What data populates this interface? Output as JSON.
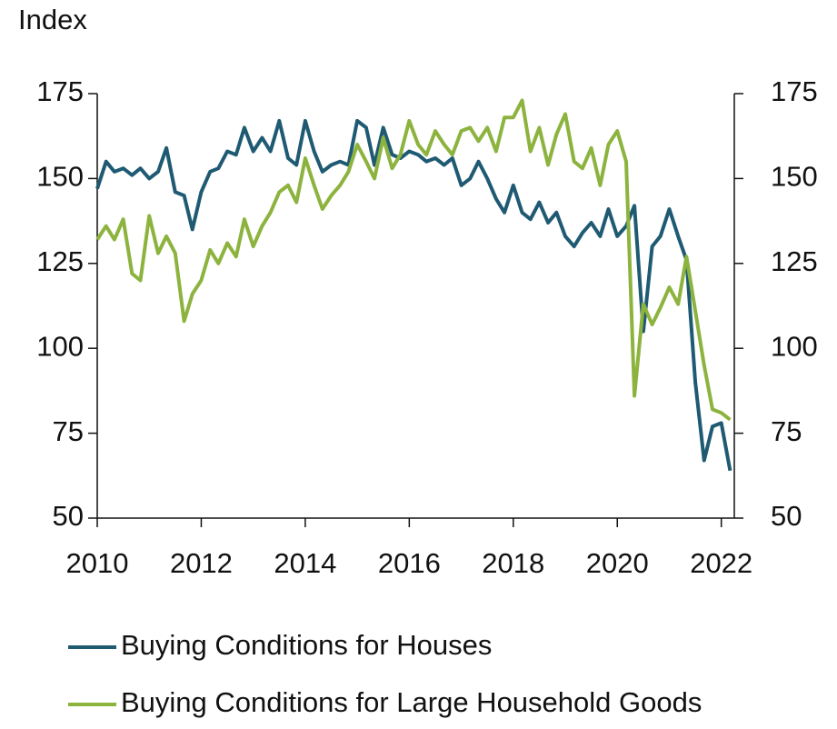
{
  "chart_data": {
    "type": "line",
    "y_label": "Index",
    "x": [
      2010,
      2010.17,
      2010.33,
      2010.5,
      2010.67,
      2010.83,
      2011,
      2011.17,
      2011.33,
      2011.5,
      2011.67,
      2011.83,
      2012,
      2012.17,
      2012.33,
      2012.5,
      2012.67,
      2012.83,
      2013,
      2013.17,
      2013.33,
      2013.5,
      2013.67,
      2013.83,
      2014,
      2014.17,
      2014.33,
      2014.5,
      2014.67,
      2014.83,
      2015,
      2015.17,
      2015.33,
      2015.5,
      2015.67,
      2015.83,
      2016,
      2016.17,
      2016.33,
      2016.5,
      2016.67,
      2016.83,
      2017,
      2017.17,
      2017.33,
      2017.5,
      2017.67,
      2017.83,
      2018,
      2018.17,
      2018.33,
      2018.5,
      2018.67,
      2018.83,
      2019,
      2019.17,
      2019.33,
      2019.5,
      2019.67,
      2019.83,
      2020,
      2020.17,
      2020.33,
      2020.5,
      2020.67,
      2020.83,
      2021,
      2021.17,
      2021.33,
      2021.5,
      2021.67,
      2021.83,
      2022,
      2022.17
    ],
    "series": [
      {
        "name": "Buying Conditions for Houses",
        "color": "#1f5a73",
        "values": [
          147,
          155,
          152,
          153,
          151,
          153,
          150,
          152,
          159,
          146,
          145,
          135,
          146,
          152,
          153,
          158,
          157,
          165,
          158,
          162,
          158,
          167,
          156,
          154,
          167,
          158,
          152,
          154,
          155,
          154,
          167,
          165,
          154,
          165,
          157,
          156,
          158,
          157,
          155,
          156,
          154,
          156,
          148,
          150,
          155,
          150,
          144,
          140,
          148,
          140,
          138,
          143,
          137,
          140,
          133,
          130,
          134,
          137,
          133,
          141,
          133,
          136,
          142,
          105,
          130,
          133,
          141,
          133,
          126,
          90,
          67,
          77,
          78,
          64
        ]
      },
      {
        "name": "Buying Conditions for Large Household Goods",
        "color": "#8db33f",
        "values": [
          132,
          136,
          132,
          138,
          122,
          120,
          139,
          128,
          133,
          128,
          108,
          116,
          120,
          129,
          125,
          131,
          127,
          138,
          130,
          136,
          140,
          146,
          148,
          143,
          156,
          148,
          141,
          145,
          148,
          152,
          160,
          155,
          150,
          162,
          153,
          157,
          167,
          160,
          157,
          164,
          160,
          157,
          164,
          165,
          161,
          165,
          158,
          168,
          168,
          173,
          158,
          165,
          154,
          163,
          169,
          155,
          153,
          159,
          148,
          160,
          164,
          155,
          86,
          113,
          107,
          112,
          118,
          113,
          127,
          111,
          95,
          82,
          81,
          79
        ]
      }
    ],
    "xlim": [
      2010,
      2022.25
    ],
    "xticks": [
      2010,
      2012,
      2014,
      2016,
      2018,
      2020,
      2022
    ],
    "ylim": [
      50,
      175
    ],
    "yticks": [
      50,
      75,
      100,
      125,
      150,
      175
    ],
    "y2lim": [
      50,
      175
    ],
    "y2ticks": [
      50,
      75,
      100,
      125,
      150,
      175
    ]
  }
}
